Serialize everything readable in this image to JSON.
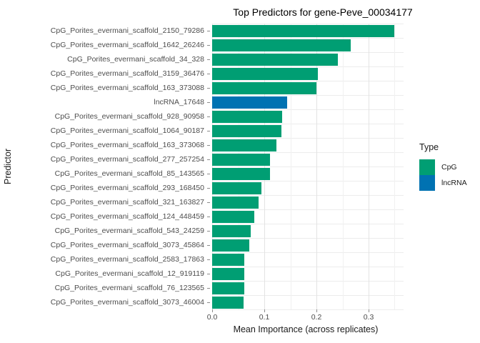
{
  "title": "Top Predictors for gene-Peve_00034177",
  "axes": {
    "x_title": "Mean Importance (across replicates)",
    "y_title": "Predictor",
    "x_tick_labels": [
      "0.0",
      "0.1",
      "0.2",
      "0.3"
    ]
  },
  "legend": {
    "title": "Type",
    "items": [
      {
        "label": "CpG",
        "color": "#009E73"
      },
      {
        "label": "lncRNA",
        "color": "#0072B2"
      }
    ]
  },
  "chart_data": {
    "type": "bar",
    "orientation": "horizontal",
    "title": "Top Predictors for gene-Peve_00034177",
    "xlabel": "Mean Importance (across replicates)",
    "ylabel": "Predictor",
    "xlim": [
      0,
      0.3675
    ],
    "x_major_ticks": [
      0,
      0.1,
      0.2,
      0.3
    ],
    "x_minor_ticks": [
      0.05,
      0.15,
      0.25,
      0.35
    ],
    "grid": true,
    "legend_position": "right",
    "legend_title": "Type",
    "categories": [
      "CpG_Porites_evermani_scaffold_2150_79286",
      "CpG_Porites_evermani_scaffold_1642_26246",
      "CpG_Porites_evermani_scaffold_34_328",
      "CpG_Porites_evermani_scaffold_3159_36476",
      "CpG_Porites_evermani_scaffold_163_373088",
      "lncRNA_17648",
      "CpG_Porites_evermani_scaffold_928_90958",
      "CpG_Porites_evermani_scaffold_1064_90187",
      "CpG_Porites_evermani_scaffold_163_373068",
      "CpG_Porites_evermani_scaffold_277_257254",
      "CpG_Porites_evermani_scaffold_85_143565",
      "CpG_Porites_evermani_scaffold_293_168450",
      "CpG_Porites_evermani_scaffold_321_163827",
      "CpG_Porites_evermani_scaffold_124_448459",
      "CpG_Porites_evermani_scaffold_543_24259",
      "CpG_Porites_evermani_scaffold_3073_45864",
      "CpG_Porites_evermani_scaffold_2583_17863",
      "CpG_Porites_evermani_scaffold_12_919119",
      "CpG_Porites_evermani_scaffold_76_123565",
      "CpG_Porites_evermani_scaffold_3073_46004"
    ],
    "values": [
      0.349,
      0.266,
      0.241,
      0.203,
      0.2,
      0.144,
      0.134,
      0.133,
      0.123,
      0.111,
      0.111,
      0.095,
      0.089,
      0.081,
      0.074,
      0.071,
      0.062,
      0.062,
      0.062,
      0.06
    ],
    "types": [
      "CpG",
      "CpG",
      "CpG",
      "CpG",
      "CpG",
      "lncRNA",
      "CpG",
      "CpG",
      "CpG",
      "CpG",
      "CpG",
      "CpG",
      "CpG",
      "CpG",
      "CpG",
      "CpG",
      "CpG",
      "CpG",
      "CpG",
      "CpG"
    ]
  }
}
